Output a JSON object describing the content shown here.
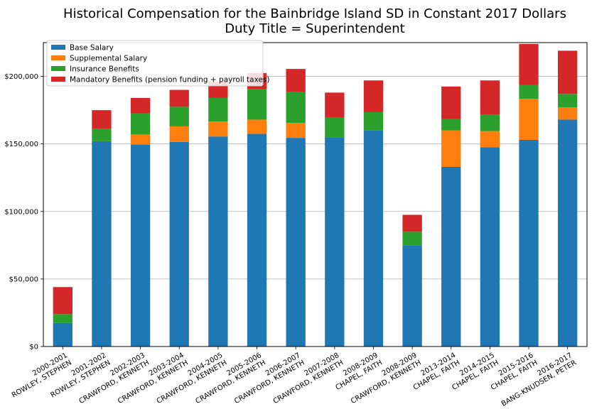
{
  "chart_data": {
    "type": "bar",
    "stacked": true,
    "title": "Historical Compensation for the Bainbridge Island SD in Constant 2017 Dollars",
    "subtitle": "Duty Title = Superintendent",
    "xlabel": "",
    "ylabel": "",
    "ylim": [
      0,
      225000
    ],
    "yticks": [
      0,
      50000,
      100000,
      150000,
      200000
    ],
    "ytick_labels": [
      "$0",
      "$50,000",
      "$100,000",
      "$150,000",
      "$200,000"
    ],
    "grid": "y",
    "legend_position": "top-left",
    "categories": [
      [
        "2000-2001",
        "ROWLEY, STEPHEN"
      ],
      [
        "2001-2002",
        "ROWLEY, STEPHEN"
      ],
      [
        "2002-2003",
        "CRAWFORD, KENNETH"
      ],
      [
        "2003-2004",
        "CRAWFORD, KENNETH"
      ],
      [
        "2004-2005",
        "CRAWFORD, KENNETH"
      ],
      [
        "2005-2006",
        "CRAWFORD, KENNETH"
      ],
      [
        "2006-2007",
        "CRAWFORD, KENNETH"
      ],
      [
        "2007-2008",
        "CRAWFORD, KENNETH"
      ],
      [
        "2008-2009",
        "CHAPEL, FAITH"
      ],
      [
        "2008-2009",
        "CRAWFORD, KENNETH"
      ],
      [
        "2013-2014",
        "CHAPEL, FAITH"
      ],
      [
        "2014-2015",
        "CHAPEL, FAITH"
      ],
      [
        "2015-2016",
        "CHAPEL, FAITH"
      ],
      [
        "2016-2017",
        "BANG-KNUDSEN, PETER"
      ]
    ],
    "series": [
      {
        "name": "Base Salary",
        "color": "#1f77b4",
        "values": [
          17500,
          152000,
          149500,
          151500,
          155500,
          157500,
          154500,
          155000,
          160000,
          75000,
          133000,
          147500,
          153000,
          168000
        ]
      },
      {
        "name": "Supplemental Salary",
        "color": "#ff7f0e",
        "values": [
          0,
          0,
          7500,
          11500,
          11000,
          10500,
          11000,
          0,
          0,
          0,
          27000,
          12000,
          30500,
          9000
        ]
      },
      {
        "name": "Insurance Benefits",
        "color": "#2ca02c",
        "values": [
          6500,
          9000,
          15500,
          14500,
          17500,
          22500,
          23000,
          14500,
          13500,
          10000,
          8500,
          12000,
          10000,
          10000
        ]
      },
      {
        "name": "Mandatory Benefits (pension funding + payroll taxes)",
        "color": "#d62728",
        "values": [
          20000,
          14000,
          11500,
          12500,
          12000,
          12000,
          17000,
          18500,
          23500,
          12500,
          24000,
          25500,
          30500,
          32000
        ]
      }
    ]
  }
}
